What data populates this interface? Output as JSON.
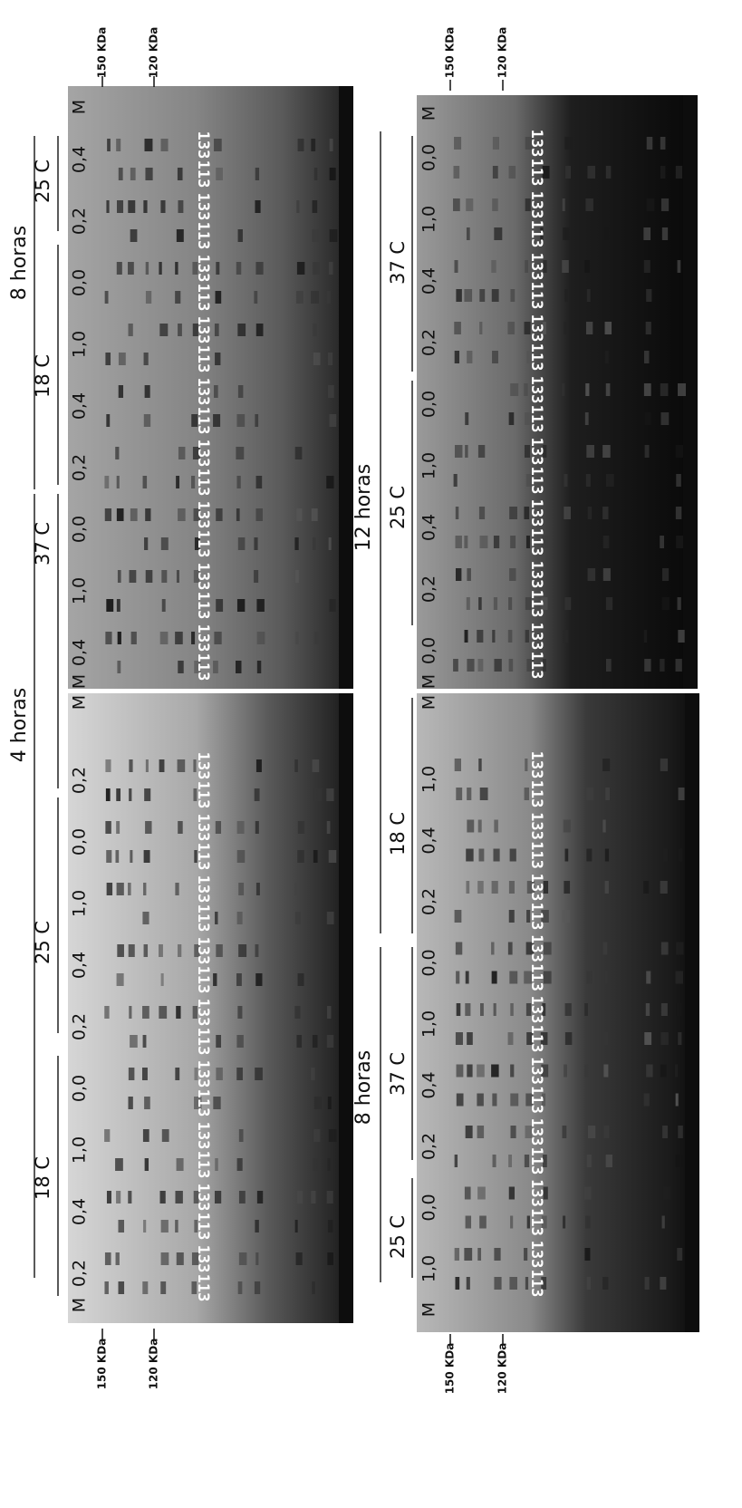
{
  "panels": [
    {
      "title": "4 horas",
      "lanes": [
        "M",
        "0,2",
        "0,4",
        "1,0",
        "0,0",
        "0,2",
        "0,4",
        "1,0",
        "0,0",
        "0,2",
        "M"
      ],
      "groups": [
        "18 C",
        "25 C"
      ],
      "samples": [
        "113",
        "133",
        "113",
        "133",
        "113",
        "133",
        "113",
        "133",
        "113",
        "133",
        "113",
        "133",
        "113",
        "133",
        "113",
        "133",
        "113",
        "133"
      ],
      "markers": [
        "150 KDa",
        "120 KDa"
      ]
    },
    {
      "title": "8 horas",
      "lanes": [
        "M",
        "0,4",
        "1,0",
        "0,0",
        "0,2",
        "0,4",
        "1,0",
        "0,0",
        "0,2",
        "0,4",
        "M"
      ],
      "groups": [
        "37 C",
        "18 C",
        "25 C"
      ],
      "samples": [
        "113",
        "133",
        "113",
        "133",
        "113",
        "133",
        "113",
        "133",
        "113",
        "133",
        "113",
        "133",
        "113",
        "133",
        "113",
        "133",
        "113",
        "133"
      ],
      "markers": [
        "150 KDa",
        "120 KDa"
      ]
    },
    {
      "title": "8 horas",
      "lanes": [
        "M",
        "1,0",
        "0,0",
        "0,2",
        "0,4",
        "1,0",
        "0,0",
        "0,2",
        "0,4",
        "1,0",
        "M"
      ],
      "groups": [
        "25 C",
        "37 C",
        "18 C"
      ],
      "samples": [
        "113",
        "133",
        "113",
        "133",
        "113",
        "133",
        "113",
        "133",
        "113",
        "133",
        "113",
        "133",
        "113",
        "133",
        "113",
        "133",
        "113",
        "133"
      ],
      "markers": [
        "150 KDa",
        "120 KDa"
      ]
    },
    {
      "title": "12 horas",
      "lanes": [
        "M",
        "0,0",
        "0,2",
        "0,4",
        "1,0",
        "0,0",
        "0,2",
        "0,4",
        "1,0",
        "0,0",
        "M"
      ],
      "groups": [
        "25 C",
        "37 C"
      ],
      "samples": [
        "113",
        "133",
        "113",
        "133",
        "113",
        "133",
        "113",
        "133",
        "113",
        "133",
        "113",
        "133",
        "113",
        "133",
        "113",
        "133",
        "113",
        "133"
      ],
      "markers": [
        "150 KDa",
        "120 KDa"
      ]
    }
  ]
}
